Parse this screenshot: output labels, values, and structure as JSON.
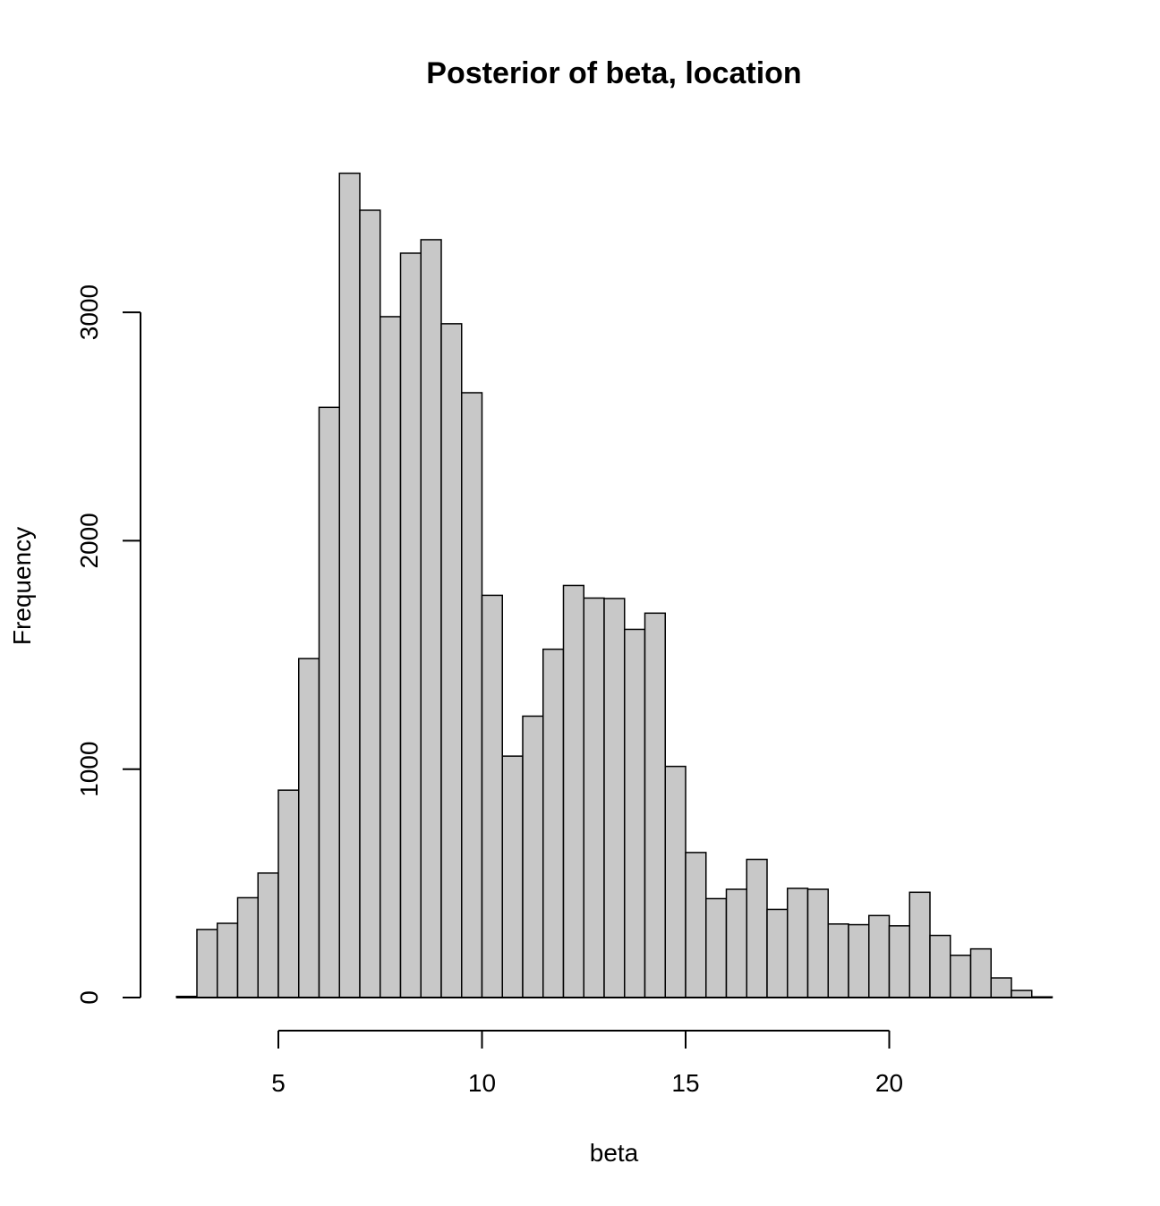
{
  "chart_data": {
    "type": "bar",
    "title": "Posterior of beta, location",
    "xlabel": "beta",
    "ylabel": "Frequency",
    "xlim": [
      2.5,
      24
    ],
    "ylim": [
      0,
      3600
    ],
    "x_ticks": [
      5,
      10,
      15,
      20
    ],
    "x_tick_labels": [
      "5",
      "10",
      "15",
      "20"
    ],
    "y_ticks": [
      0,
      1000,
      2000,
      3000
    ],
    "y_tick_labels": [
      "0",
      "1000",
      "2000",
      "3000"
    ],
    "grid": false,
    "bin_width": 0.5,
    "bin_starts": [
      2.5,
      3.0,
      3.5,
      4.0,
      4.5,
      5.0,
      5.5,
      6.0,
      6.5,
      7.0,
      7.5,
      8.0,
      8.5,
      9.0,
      9.5,
      10.0,
      10.5,
      11.0,
      11.5,
      12.0,
      12.5,
      13.0,
      13.5,
      14.0,
      14.5,
      15.0,
      15.5,
      16.0,
      16.5,
      17.0,
      17.5,
      18.0,
      18.5,
      19.0,
      19.5,
      20.0,
      20.5,
      21.0,
      21.5,
      22.0,
      22.5,
      23.0,
      23.5
    ],
    "values": [
      5,
      298,
      325,
      437,
      545,
      908,
      1484,
      2584,
      3609,
      3447,
      2981,
      3259,
      3318,
      2950,
      2648,
      1761,
      1057,
      1232,
      1525,
      1804,
      1749,
      1747,
      1612,
      1683,
      1012,
      635,
      433,
      474,
      605,
      386,
      478,
      474,
      322,
      319,
      359,
      314,
      461,
      272,
      185,
      213,
      86,
      31,
      3
    ]
  }
}
